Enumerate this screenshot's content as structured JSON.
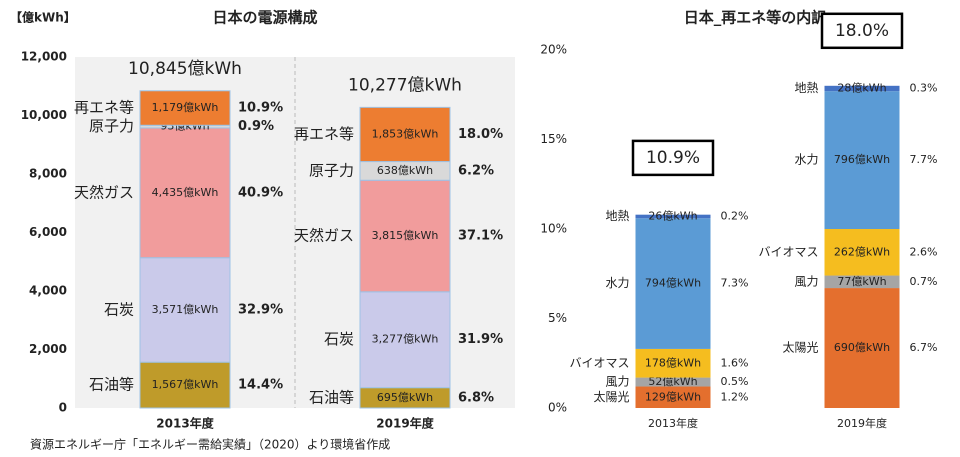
{
  "chart_data": [
    {
      "type": "stacked_bar",
      "title": "日本の電源構成",
      "ylabel": "【億kWh】",
      "categories": [
        "2013年度",
        "2019年度"
      ],
      "ylim": [
        0,
        12000
      ],
      "yticks": [
        0,
        {
          "value": 2000,
          "label": "2,000"
        },
        {
          "value": 4000,
          "label": "4,000"
        },
        {
          "value": 6000,
          "label": "6,000"
        },
        {
          "value": 8000,
          "label": "8,000"
        },
        {
          "value": 10000,
          "label": "10,000"
        },
        {
          "value": 12000,
          "label": "12,000"
        }
      ],
      "grid": false,
      "totals": [
        10845,
        10277
      ],
      "total_labels": [
        "10,845億kWh",
        "10,277億kWh"
      ],
      "series": [
        {
          "name": "石油等",
          "color": "#bf9b2a",
          "values": [
            1567,
            695
          ],
          "value_labels": [
            "1,567億kWh",
            "695億kWh"
          ],
          "shares": [
            14.4,
            6.8
          ],
          "share_labels": [
            "14.4%",
            "6.8%"
          ]
        },
        {
          "name": "石炭",
          "color": "#cacaea",
          "values": [
            3571,
            3277
          ],
          "value_labels": [
            "3,571億kWh",
            "3,277億kWh"
          ],
          "shares": [
            32.9,
            31.9
          ],
          "share_labels": [
            "32.9%",
            "31.9%"
          ]
        },
        {
          "name": "天然ガス",
          "color": "#f19c9c",
          "values": [
            4435,
            3815
          ],
          "value_labels": [
            "4,435億kWh",
            "3,815億kWh"
          ],
          "shares": [
            40.9,
            37.1
          ],
          "share_labels": [
            "40.9%",
            "37.1%"
          ]
        },
        {
          "name": "原子力",
          "color": "#d9d9d9",
          "values": [
            93,
            638
          ],
          "value_labels": [
            "93億kWh",
            "638億kWh"
          ],
          "shares": [
            0.9,
            6.2
          ],
          "share_labels": [
            "0.9%",
            "6.2%"
          ]
        },
        {
          "name": "再エネ等",
          "color": "#ed7d31",
          "values": [
            1179,
            1853
          ],
          "value_labels": [
            "1,179億kWh",
            "1,853億kWh"
          ],
          "shares": [
            10.9,
            18.0
          ],
          "share_labels": [
            "10.9%",
            "18.0%"
          ]
        }
      ]
    },
    {
      "type": "stacked_bar",
      "title": "日本_再エネ等の内訳",
      "categories": [
        "2013年度",
        "2019年度"
      ],
      "ylim": [
        0,
        20
      ],
      "yticks": [
        {
          "value": 0,
          "label": "0%"
        },
        {
          "value": 5,
          "label": "5%"
        },
        {
          "value": 10,
          "label": "10%"
        },
        {
          "value": 15,
          "label": "15%"
        },
        {
          "value": 20,
          "label": "20%"
        }
      ],
      "grid": false,
      "totals": [
        10.9,
        18.0
      ],
      "total_labels": [
        "10.9%",
        "18.0%"
      ],
      "series": [
        {
          "name": "太陽光",
          "color": "#e46f2e",
          "values": [
            1.2,
            6.7
          ],
          "value_labels": [
            "1.2%",
            "6.7%"
          ],
          "amounts": [
            129,
            690
          ],
          "amount_labels": [
            "129億kWh",
            "690億kWh"
          ]
        },
        {
          "name": "風力",
          "color": "#a5a5a5",
          "values": [
            0.5,
            0.7
          ],
          "value_labels": [
            "0.5%",
            "0.7%"
          ],
          "amounts": [
            52,
            77
          ],
          "amount_labels": [
            "52億kWh",
            "77億kWh"
          ]
        },
        {
          "name": "バイオマス",
          "color": "#f5bd1f",
          "values": [
            1.6,
            2.6
          ],
          "value_labels": [
            "1.6%",
            "2.6%"
          ],
          "amounts": [
            178,
            262
          ],
          "amount_labels": [
            "178億kWh",
            "262億kWh"
          ]
        },
        {
          "name": "水力",
          "color": "#5b9bd5",
          "values": [
            7.3,
            7.7
          ],
          "value_labels": [
            "7.3%",
            "7.7%"
          ],
          "amounts": [
            794,
            796
          ],
          "amount_labels": [
            "794億kWh",
            "796億kWh"
          ]
        },
        {
          "name": "地熱",
          "color": "#4472c4",
          "values": [
            0.2,
            0.3
          ],
          "value_labels": [
            "0.2%",
            "0.3%"
          ],
          "amounts": [
            26,
            28
          ],
          "amount_labels": [
            "26億kWh",
            "28億kWh"
          ]
        }
      ]
    }
  ],
  "source": "資源エネルギー庁「エネルギー需給実績」（2020）より環境省作成"
}
